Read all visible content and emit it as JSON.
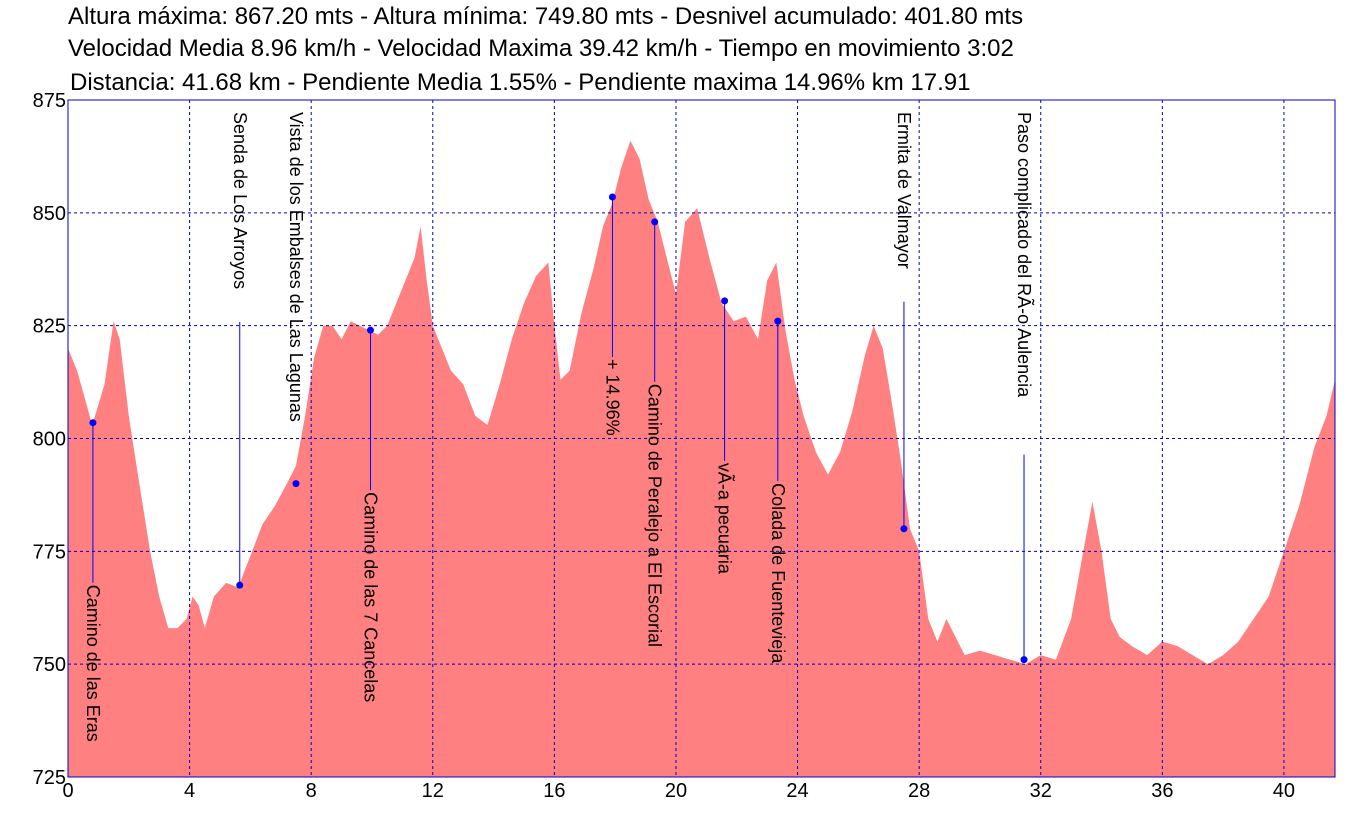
{
  "header": {
    "line1": "Altura máxima: 867.20 mts  -  Altura mínima: 749.80 mts  -  Desnivel acumulado: 401.80 mts",
    "line2": "Velocidad Media 8.96 km/h - Velocidad Maxima 39.42 km/h - Tiempo en movimiento 3:02",
    "line3": "Distancia: 41.68 km  -  Pendiente Media 1.55%   -  Pendiente maxima 14.96% km 17.91"
  },
  "chart_data": {
    "type": "area",
    "xlim": [
      0,
      41.68
    ],
    "ylim": [
      725,
      875
    ],
    "xticks": [
      0,
      4,
      8,
      12,
      16,
      20,
      24,
      28,
      32,
      36,
      40
    ],
    "yticks": [
      725,
      750,
      775,
      800,
      825,
      850,
      875
    ],
    "grid": true,
    "fill_color": "#ff8080",
    "grid_color": "#0000cc",
    "series": [
      {
        "x": [
          0,
          0.3,
          0.8,
          1.2,
          1.5,
          1.7,
          2.0,
          2.3,
          2.7,
          3.0,
          3.3,
          3.6,
          3.9,
          4.1,
          4.3,
          4.5,
          4.8,
          5.2,
          5.6,
          6.0,
          6.4,
          6.8,
          7.2,
          7.5,
          7.8,
          8.1,
          8.4,
          8.7,
          9.0,
          9.3,
          9.6,
          9.9,
          10.2,
          10.5,
          10.8,
          11.1,
          11.4,
          11.6,
          11.8,
          12.0,
          12.3,
          12.6,
          13.0,
          13.4,
          13.8,
          14.2,
          14.6,
          15.0,
          15.4,
          15.8,
          16.0,
          16.2,
          16.5,
          16.9,
          17.3,
          17.6,
          17.9,
          18.2,
          18.5,
          18.8,
          19.1,
          19.4,
          19.7,
          20.0,
          20.3,
          20.7,
          21.1,
          21.5,
          21.9,
          22.3,
          22.7,
          23.0,
          23.3,
          23.6,
          23.9,
          24.2,
          24.6,
          25.0,
          25.4,
          25.8,
          26.2,
          26.5,
          26.8,
          27.1,
          27.4,
          27.7,
          28.0,
          28.3,
          28.6,
          28.9,
          29.2,
          29.5,
          30.0,
          30.5,
          31.0,
          31.5,
          32.0,
          32.5,
          33.0,
          33.4,
          33.7,
          34.0,
          34.3,
          34.6,
          35.0,
          35.5,
          36.0,
          36.5,
          37.0,
          37.5,
          38.0,
          38.5,
          39.0,
          39.5,
          40.0,
          40.5,
          41.0,
          41.4,
          41.68
        ],
        "y": [
          820,
          815,
          803,
          812,
          826,
          822,
          805,
          792,
          775,
          765,
          758,
          758,
          760,
          765,
          763,
          758,
          765,
          768,
          767,
          774,
          781,
          785,
          790,
          794,
          805,
          818,
          825,
          825,
          822,
          826,
          825,
          824,
          823,
          825,
          830,
          835,
          840,
          847,
          835,
          825,
          820,
          815,
          812,
          805,
          803,
          812,
          822,
          830,
          836,
          839,
          825,
          813,
          815,
          828,
          838,
          847,
          852,
          860,
          866,
          862,
          853,
          848,
          840,
          832,
          848,
          851,
          840,
          830,
          826,
          827,
          822,
          835,
          839,
          824,
          813,
          805,
          797,
          792,
          797,
          806,
          818,
          825,
          820,
          808,
          795,
          780,
          775,
          760,
          755,
          760,
          756,
          752,
          753,
          752,
          751,
          750,
          752,
          751,
          760,
          775,
          786,
          775,
          760,
          756,
          754,
          752,
          755,
          754,
          752,
          750,
          752,
          755,
          760,
          765,
          775,
          785,
          798,
          805,
          813
        ]
      }
    ],
    "waypoints": [
      {
        "label": "Camino de las Eras",
        "x": 0.82,
        "y": 803.5,
        "side": "below"
      },
      {
        "label": "Senda de Los Arroyos",
        "x": 5.65,
        "y": 767.5,
        "side": "above"
      },
      {
        "label": "Vista de los Embalses de Las Lagunas",
        "x": 7.5,
        "y": 790,
        "side": "above"
      },
      {
        "label": "Camino de las 7 Cancelas",
        "x": 9.95,
        "y": 824,
        "side": "below"
      },
      {
        "label": "+ 14.96%",
        "x": 17.91,
        "y": 853.5,
        "side": "below"
      },
      {
        "label": "Camino de Peralejo a El Escorial",
        "x": 19.3,
        "y": 848,
        "side": "below"
      },
      {
        "label": "vÃ-a pecuaria",
        "x": 21.6,
        "y": 830.5,
        "side": "below"
      },
      {
        "label": "Colada de Fuentevieja",
        "x": 23.35,
        "y": 826,
        "side": "below"
      },
      {
        "label": "Ermita de Valmayor",
        "x": 27.5,
        "y": 780,
        "side": "above"
      },
      {
        "label": "Paso complicado del RÃ-o Aulencia",
        "x": 31.45,
        "y": 751,
        "side": "above"
      }
    ]
  }
}
